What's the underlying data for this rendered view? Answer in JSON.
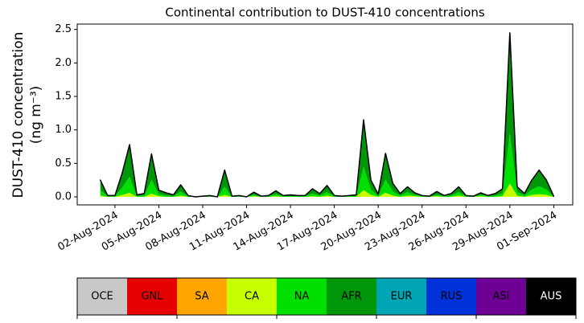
{
  "chart_data": {
    "type": "stacked_area",
    "title": "Continental contribution to DUST-410 concentrations",
    "y_label": [
      "DUST-410 concentration",
      "(ng m⁻³)"
    ],
    "x": [
      1,
      1.5,
      2,
      2.5,
      3,
      3.5,
      4,
      4.5,
      5,
      5.5,
      6,
      6.5,
      7,
      7.5,
      8,
      8.5,
      9,
      9.5,
      10,
      10.5,
      11,
      11.5,
      12,
      12.5,
      13,
      13.5,
      14,
      14.5,
      15,
      15.5,
      16,
      16.5,
      17,
      17.5,
      18,
      18.5,
      19,
      19.5,
      20,
      20.5,
      21,
      21.5,
      22,
      22.5,
      23,
      23.5,
      24,
      24.5,
      25,
      25.5,
      26,
      26.5,
      27,
      27.5,
      28,
      28.5,
      29,
      29.5,
      30,
      30.5,
      31,
      31.5,
      32
    ],
    "xlim": [
      -0.58,
      33.3
    ],
    "xticks": [
      {
        "value": 2,
        "label": "02-Aug-2024"
      },
      {
        "value": 5,
        "label": "05-Aug-2024"
      },
      {
        "value": 8,
        "label": "08-Aug-2024"
      },
      {
        "value": 11,
        "label": "11-Aug-2024"
      },
      {
        "value": 14,
        "label": "14-Aug-2024"
      },
      {
        "value": 17,
        "label": "17-Aug-2024"
      },
      {
        "value": 20,
        "label": "20-Aug-2024"
      },
      {
        "value": 23,
        "label": "23-Aug-2024"
      },
      {
        "value": 26,
        "label": "26-Aug-2024"
      },
      {
        "value": 29,
        "label": "29-Aug-2024"
      },
      {
        "value": 32,
        "label": "01-Sep-2024"
      }
    ],
    "ylim": [
      -0.12,
      2.58
    ],
    "yticks": [
      {
        "value": 0,
        "label": "0.0"
      },
      0.5,
      {
        "value": 1,
        "label": "1.0"
      },
      1.5,
      {
        "value": 2,
        "label": "2.0"
      },
      2.5
    ],
    "series": [
      {
        "name": "OCE",
        "color": "#c8c8c8",
        "values": [
          0,
          0,
          0,
          0,
          0,
          0,
          0,
          0,
          0,
          0,
          0,
          0,
          0,
          0,
          0,
          0,
          0,
          0,
          0,
          0,
          0,
          0,
          0,
          0,
          0,
          0,
          0,
          0,
          0,
          0,
          0,
          0,
          0,
          0,
          0,
          0,
          0,
          0,
          0,
          0,
          0,
          0,
          0,
          0,
          0,
          0,
          0,
          0,
          0,
          0,
          0,
          0,
          0,
          0,
          0,
          0,
          0,
          0,
          0,
          0,
          0,
          0,
          0
        ]
      },
      {
        "name": "GNL",
        "color": "#e60000",
        "values": [
          0,
          0,
          0,
          0,
          0,
          0,
          0,
          0,
          0,
          0,
          0,
          0,
          0,
          0,
          0,
          0,
          0,
          0,
          0,
          0,
          0,
          0,
          0,
          0,
          0,
          0,
          0,
          0,
          0,
          0,
          0,
          0,
          0,
          0,
          0,
          0,
          0,
          0,
          0,
          0,
          0,
          0,
          0,
          0,
          0,
          0,
          0,
          0,
          0,
          0,
          0,
          0,
          0,
          0,
          0,
          0,
          0,
          0,
          0,
          0,
          0,
          0,
          0
        ]
      },
      {
        "name": "SA",
        "color": "#ffa500",
        "values": [
          0,
          0,
          0,
          0,
          0,
          0,
          0,
          0,
          0,
          0,
          0,
          0,
          0,
          0,
          0,
          0,
          0,
          0,
          0,
          0,
          0,
          0,
          0,
          0,
          0,
          0,
          0,
          0,
          0,
          0,
          0,
          0,
          0,
          0,
          0,
          0,
          0,
          0,
          0,
          0,
          0,
          0,
          0,
          0,
          0,
          0,
          0,
          0,
          0,
          0,
          0,
          0,
          0,
          0,
          0,
          0,
          0,
          0,
          0,
          0,
          0,
          0,
          0
        ]
      },
      {
        "name": "CA",
        "color": "#c8ff00",
        "values": [
          0.02,
          0,
          0,
          0.03,
          0.06,
          0,
          0,
          0.05,
          0.01,
          0,
          0,
          0.02,
          0,
          0,
          0,
          0,
          0,
          0.03,
          0,
          0,
          0,
          0.01,
          0,
          0,
          0.01,
          0,
          0,
          0,
          0,
          0.01,
          0,
          0.02,
          0,
          0,
          0,
          0,
          0.1,
          0.03,
          0,
          0.06,
          0.02,
          0,
          0.02,
          0.01,
          0,
          0,
          0.01,
          0,
          0,
          0.02,
          0,
          0,
          0.01,
          0,
          0,
          0.01,
          0.2,
          0.02,
          0,
          0.03,
          0.04,
          0.03,
          0
        ]
      },
      {
        "name": "NA",
        "color": "#00e000",
        "values": [
          0.08,
          0.01,
          0.01,
          0.11,
          0.24,
          0.01,
          0.02,
          0.2,
          0.03,
          0.02,
          0.01,
          0.06,
          0.01,
          0,
          0,
          0.01,
          0,
          0.12,
          0,
          0.01,
          0,
          0.02,
          0,
          0.01,
          0.03,
          0.01,
          0.01,
          0.01,
          0.01,
          0.04,
          0.02,
          0.05,
          0.01,
          0,
          0.01,
          0.01,
          0.35,
          0.08,
          0.01,
          0.2,
          0.06,
          0.02,
          0.05,
          0.02,
          0.01,
          0,
          0.02,
          0.01,
          0.02,
          0.05,
          0.01,
          0,
          0.02,
          0.01,
          0.02,
          0.04,
          0.75,
          0.05,
          0.02,
          0.08,
          0.12,
          0.08,
          0
        ]
      },
      {
        "name": "AFR",
        "color": "#00960a",
        "values": [
          0.15,
          0.01,
          0.01,
          0.22,
          0.48,
          0.02,
          0.03,
          0.39,
          0.06,
          0.04,
          0.02,
          0.1,
          0.01,
          0,
          0.01,
          0.01,
          0,
          0.25,
          0.01,
          0.01,
          0,
          0.04,
          0.01,
          0.01,
          0.05,
          0.01,
          0.02,
          0.01,
          0.01,
          0.07,
          0.03,
          0.1,
          0.01,
          0.01,
          0.01,
          0.02,
          0.7,
          0.14,
          0.03,
          0.39,
          0.12,
          0.03,
          0.08,
          0.03,
          0.01,
          0.01,
          0.05,
          0.01,
          0.03,
          0.08,
          0.01,
          0.01,
          0.03,
          0.01,
          0.03,
          0.07,
          1.5,
          0.08,
          0.03,
          0.14,
          0.24,
          0.14,
          0.01
        ]
      },
      {
        "name": "EUR",
        "color": "#00a5b4",
        "values": [
          0,
          0,
          0,
          0,
          0,
          0,
          0,
          0,
          0,
          0,
          0,
          0,
          0,
          0,
          0,
          0,
          0,
          0,
          0,
          0,
          0,
          0,
          0,
          0,
          0,
          0,
          0,
          0,
          0,
          0,
          0,
          0,
          0,
          0,
          0,
          0,
          0,
          0,
          0,
          0,
          0,
          0,
          0,
          0,
          0,
          0,
          0,
          0,
          0,
          0,
          0,
          0,
          0,
          0,
          0,
          0,
          0,
          0,
          0,
          0,
          0,
          0,
          0
        ]
      },
      {
        "name": "RUS",
        "color": "#0032dc",
        "values": [
          0,
          0,
          0,
          0,
          0,
          0,
          0,
          0,
          0,
          0,
          0,
          0,
          0,
          0,
          0,
          0,
          0,
          0,
          0,
          0,
          0,
          0,
          0,
          0,
          0,
          0,
          0,
          0,
          0,
          0,
          0,
          0,
          0,
          0,
          0,
          0,
          0,
          0,
          0,
          0,
          0,
          0,
          0,
          0,
          0,
          0,
          0,
          0,
          0,
          0,
          0,
          0,
          0,
          0,
          0,
          0,
          0,
          0,
          0,
          0,
          0,
          0,
          0
        ]
      },
      {
        "name": "ASI",
        "color": "#6e0096",
        "values": [
          0,
          0,
          0,
          0,
          0,
          0,
          0,
          0,
          0,
          0,
          0,
          0,
          0,
          0,
          0,
          0,
          0,
          0,
          0,
          0,
          0,
          0,
          0,
          0,
          0,
          0,
          0,
          0,
          0,
          0,
          0,
          0,
          0,
          0,
          0,
          0,
          0,
          0,
          0,
          0,
          0,
          0,
          0,
          0,
          0,
          0,
          0,
          0,
          0,
          0,
          0,
          0,
          0,
          0,
          0,
          0,
          0,
          0,
          0,
          0,
          0,
          0,
          0
        ]
      },
      {
        "name": "AUS",
        "color": "#000000",
        "values": [
          0,
          0,
          0,
          0,
          0,
          0,
          0,
          0,
          0,
          0,
          0,
          0,
          0,
          0,
          0,
          0,
          0,
          0,
          0,
          0,
          0,
          0,
          0,
          0,
          0,
          0,
          0,
          0,
          0,
          0,
          0,
          0,
          0,
          0,
          0,
          0,
          0,
          0,
          0,
          0,
          0,
          0,
          0,
          0,
          0,
          0,
          0,
          0,
          0,
          0,
          0,
          0,
          0,
          0,
          0,
          0,
          0,
          0,
          0,
          0,
          0,
          0,
          0
        ]
      }
    ]
  }
}
